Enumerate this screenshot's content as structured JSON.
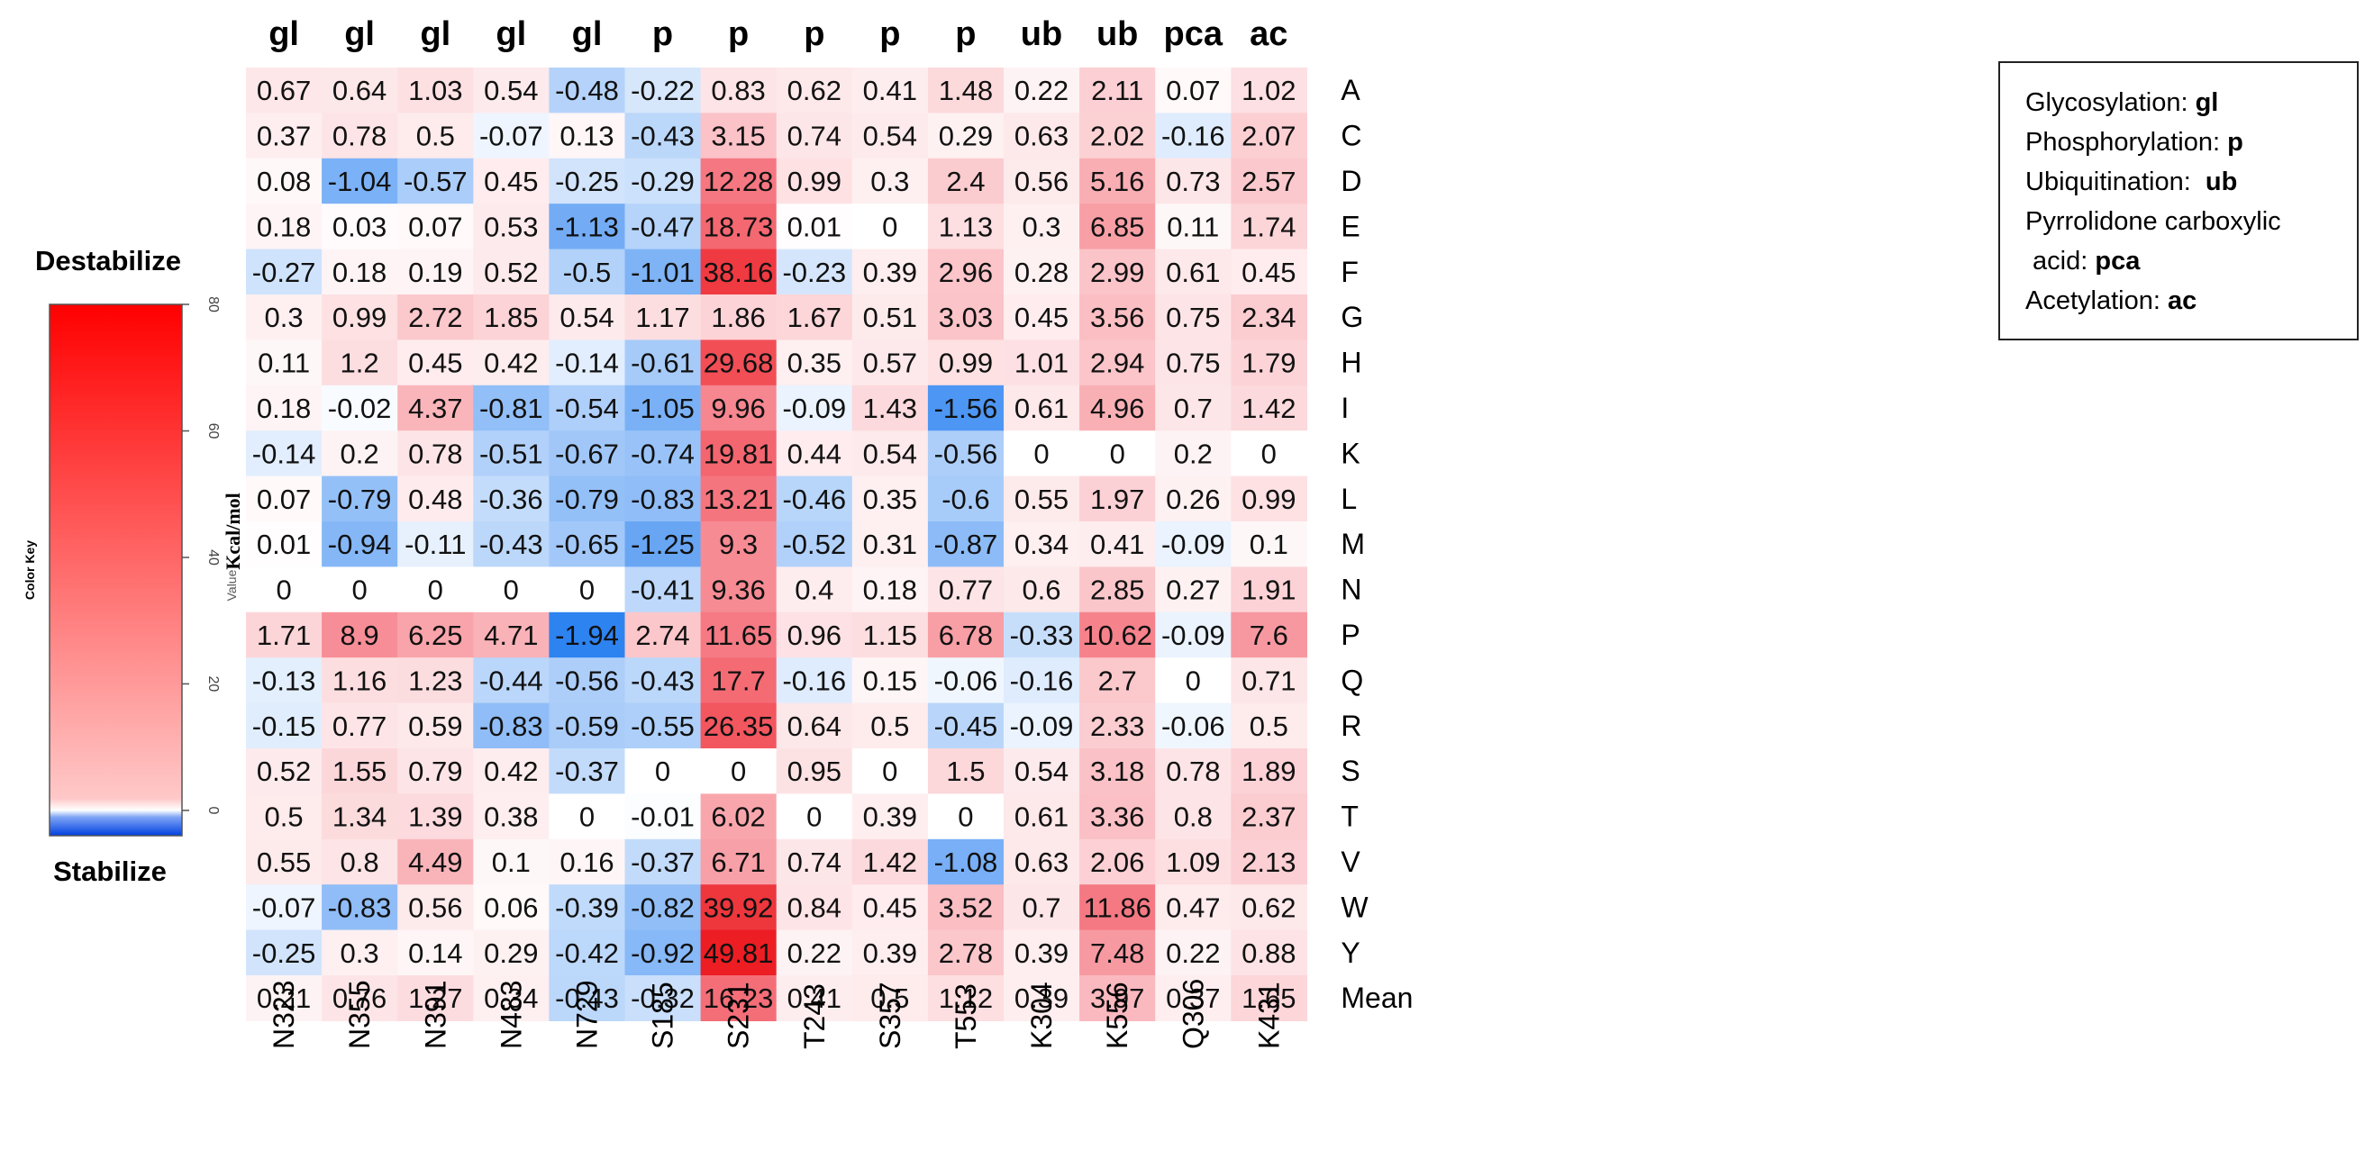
{
  "chart_data": {
    "type": "heatmap",
    "column_groups": [
      "gl",
      "gl",
      "gl",
      "gl",
      "gl",
      "p",
      "p",
      "p",
      "p",
      "p",
      "ub",
      "ub",
      "pca",
      "ac"
    ],
    "columns": [
      "N323",
      "N355",
      "N391",
      "N483",
      "N729",
      "S185",
      "S231",
      "T243",
      "S357",
      "T553",
      "K304",
      "K556",
      "Q306",
      "K431"
    ],
    "rows": [
      "A",
      "C",
      "D",
      "E",
      "F",
      "G",
      "H",
      "I",
      "K",
      "L",
      "M",
      "N",
      "P",
      "Q",
      "R",
      "S",
      "T",
      "V",
      "W",
      "Y",
      "Mean"
    ],
    "values": [
      [
        "0.67",
        "0.64",
        "1.03",
        "0.54",
        "-0.48",
        "-0.22",
        "0.83",
        "0.62",
        "0.41",
        "1.48",
        "0.22",
        "2.11",
        "0.07",
        "1.02"
      ],
      [
        "0.37",
        "0.78",
        "0.5",
        "-0.07",
        "0.13",
        "-0.43",
        "3.15",
        "0.74",
        "0.54",
        "0.29",
        "0.63",
        "2.02",
        "-0.16",
        "2.07"
      ],
      [
        "0.08",
        "-1.04",
        "-0.57",
        "0.45",
        "-0.25",
        "-0.29",
        "12.28",
        "0.99",
        "0.3",
        "2.4",
        "0.56",
        "5.16",
        "0.73",
        "2.57"
      ],
      [
        "0.18",
        "0.03",
        "0.07",
        "0.53",
        "-1.13",
        "-0.47",
        "18.73",
        "0.01",
        "0",
        "1.13",
        "0.3",
        "6.85",
        "0.11",
        "1.74"
      ],
      [
        "-0.27",
        "0.18",
        "0.19",
        "0.52",
        "-0.5",
        "-1.01",
        "38.16",
        "-0.23",
        "0.39",
        "2.96",
        "0.28",
        "2.99",
        "0.61",
        "0.45"
      ],
      [
        "0.3",
        "0.99",
        "2.72",
        "1.85",
        "0.54",
        "1.17",
        "1.86",
        "1.67",
        "0.51",
        "3.03",
        "0.45",
        "3.56",
        "0.75",
        "2.34"
      ],
      [
        "0.11",
        "1.2",
        "0.45",
        "0.42",
        "-0.14",
        "-0.61",
        "29.68",
        "0.35",
        "0.57",
        "0.99",
        "1.01",
        "2.94",
        "0.75",
        "1.79"
      ],
      [
        "0.18",
        "-0.02",
        "4.37",
        "-0.81",
        "-0.54",
        "-1.05",
        "9.96",
        "-0.09",
        "1.43",
        "-1.56",
        "0.61",
        "4.96",
        "0.7",
        "1.42"
      ],
      [
        "-0.14",
        "0.2",
        "0.78",
        "-0.51",
        "-0.67",
        "-0.74",
        "19.81",
        "0.44",
        "0.54",
        "-0.56",
        "0",
        "0",
        "0.2",
        "0"
      ],
      [
        "0.07",
        "-0.79",
        "0.48",
        "-0.36",
        "-0.79",
        "-0.83",
        "13.21",
        "-0.46",
        "0.35",
        "-0.6",
        "0.55",
        "1.97",
        "0.26",
        "0.99"
      ],
      [
        "0.01",
        "-0.94",
        "-0.11",
        "-0.43",
        "-0.65",
        "-1.25",
        "9.3",
        "-0.52",
        "0.31",
        "-0.87",
        "0.34",
        "0.41",
        "-0.09",
        "0.1"
      ],
      [
        "0",
        "0",
        "0",
        "0",
        "0",
        "-0.41",
        "9.36",
        "0.4",
        "0.18",
        "0.77",
        "0.6",
        "2.85",
        "0.27",
        "1.91"
      ],
      [
        "1.71",
        "8.9",
        "6.25",
        "4.71",
        "-1.94",
        "2.74",
        "11.65",
        "0.96",
        "1.15",
        "6.78",
        "-0.33",
        "10.62",
        "-0.09",
        "7.6"
      ],
      [
        "-0.13",
        "1.16",
        "1.23",
        "-0.44",
        "-0.56",
        "-0.43",
        "17.7",
        "-0.16",
        "0.15",
        "-0.06",
        "-0.16",
        "2.7",
        "0",
        "0.71"
      ],
      [
        "-0.15",
        "0.77",
        "0.59",
        "-0.83",
        "-0.59",
        "-0.55",
        "26.35",
        "0.64",
        "0.5",
        "-0.45",
        "-0.09",
        "2.33",
        "-0.06",
        "0.5"
      ],
      [
        "0.52",
        "1.55",
        "0.79",
        "0.42",
        "-0.37",
        "0",
        "0",
        "0.95",
        "0",
        "1.5",
        "0.54",
        "3.18",
        "0.78",
        "1.89"
      ],
      [
        "0.5",
        "1.34",
        "1.39",
        "0.38",
        "0",
        "-0.01",
        "6.02",
        "0",
        "0.39",
        "0",
        "0.61",
        "3.36",
        "0.8",
        "2.37"
      ],
      [
        "0.55",
        "0.8",
        "4.49",
        "0.1",
        "0.16",
        "-0.37",
        "6.71",
        "0.74",
        "1.42",
        "-1.08",
        "0.63",
        "2.06",
        "1.09",
        "2.13"
      ],
      [
        "-0.07",
        "-0.83",
        "0.56",
        "0.06",
        "-0.39",
        "-0.82",
        "39.92",
        "0.84",
        "0.45",
        "3.52",
        "0.7",
        "11.86",
        "0.47",
        "0.62"
      ],
      [
        "-0.25",
        "0.3",
        "0.14",
        "0.29",
        "-0.42",
        "-0.92",
        "49.81",
        "0.22",
        "0.39",
        "2.78",
        "0.39",
        "7.48",
        "0.22",
        "0.88"
      ],
      [
        "0.21",
        "0.76",
        "1.27",
        "0.34",
        "-0.43",
        "-0.32",
        "16.23",
        "0.41",
        "0.5",
        "1.12",
        "0.39",
        "3.97",
        "0.37",
        "1.65"
      ]
    ],
    "color_key": {
      "title": "Color Key",
      "axis_label": "Kcal/mol",
      "value_label": "Value",
      "top_label": "Destabilize",
      "bottom_label": "Stabilize",
      "ticks": [
        "0",
        "20",
        "40",
        "60",
        "80"
      ],
      "range": [
        -4,
        80
      ],
      "colors": {
        "negative": "#0040e0",
        "zero": "#ffffff",
        "positive": "#ff0000"
      }
    },
    "legend": [
      {
        "text": "Glycosylation: ",
        "code": "gl"
      },
      {
        "text": "Phosphorylation: ",
        "code": "p"
      },
      {
        "text": "Ubiquitination:  ",
        "code": "ub"
      },
      {
        "text": "Pyrrolidone carboxylic",
        "code": ""
      },
      {
        "text": " acid: ",
        "code": "pca"
      },
      {
        "text": "Acetylation: ",
        "code": "ac"
      }
    ]
  }
}
